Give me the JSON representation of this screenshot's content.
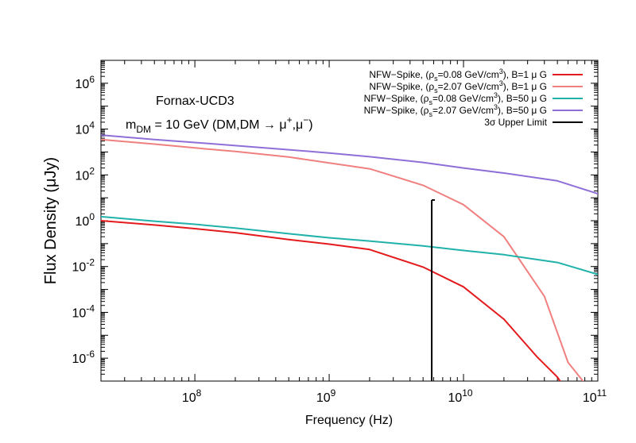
{
  "chart_data": {
    "type": "line",
    "xscale": "log",
    "yscale": "log",
    "xlabel": "Frequency (Hz)",
    "ylabel": "Flux Density (μJy)",
    "xlim": [
      20000000,
      100000000000
    ],
    "ylim": [
      1e-07,
      10000000.0
    ],
    "x_ticks": [
      {
        "value": 100000000,
        "mantissa": "10",
        "exp": "8"
      },
      {
        "value": 1000000000,
        "mantissa": "10",
        "exp": "9"
      },
      {
        "value": 10000000000,
        "mantissa": "10",
        "exp": "10"
      },
      {
        "value": 100000000000,
        "mantissa": "10",
        "exp": "11"
      }
    ],
    "y_ticks": [
      {
        "value": 1000000.0,
        "mantissa": "10",
        "exp": "6"
      },
      {
        "value": 10000.0,
        "mantissa": "10",
        "exp": "4"
      },
      {
        "value": 100.0,
        "mantissa": "10",
        "exp": "2"
      },
      {
        "value": 1,
        "mantissa": "10",
        "exp": "0"
      },
      {
        "value": 0.01,
        "mantissa": "10",
        "exp": "-2"
      },
      {
        "value": 0.0001,
        "mantissa": "10",
        "exp": "-4"
      },
      {
        "value": 1e-06,
        "mantissa": "10",
        "exp": "-6"
      }
    ],
    "grid": false,
    "legend_position": "top-right",
    "annotations": {
      "object": "Fornax-UCD3",
      "mass_prefix": "m",
      "mass_sub": "DM",
      "mass_value": " = 10 GeV (DM,DM → μ",
      "mass_sup1": "+",
      "mass_mid": ",μ",
      "mass_sup2": "−",
      "mass_end": ")"
    },
    "series": [
      {
        "legend_a": "NFW−Spike, (ρ",
        "legend_sub": "s",
        "legend_b": "=0.08 GeV/cm",
        "legend_sup": "3",
        "legend_c": "), B=1 μ G",
        "color": "#e41a1c",
        "x": [
          20000000,
          50000000,
          100000000,
          200000000,
          500000000,
          1000000000,
          2000000000,
          5000000000,
          10000000000,
          20000000000,
          35000000000,
          50000000000,
          60000000000
        ],
        "y": [
          1.0,
          0.65,
          0.45,
          0.3,
          0.15,
          0.095,
          0.055,
          0.0095,
          0.0013,
          5e-05,
          1.2e-06,
          1.5e-07,
          3e-08
        ]
      },
      {
        "legend_a": "NFW−Spike, (ρ",
        "legend_sub": "s",
        "legend_b": "=2.07 GeV/cm",
        "legend_sup": "3",
        "legend_c": "), B=1 μ G",
        "color": "#f08080",
        "x": [
          20000000,
          50000000,
          100000000,
          200000000,
          500000000,
          1000000000,
          2000000000,
          5000000000,
          10000000000,
          20000000000,
          40000000000,
          60000000000,
          80000000000
        ],
        "y": [
          3500,
          2200,
          1500,
          1050,
          600,
          330,
          185,
          35,
          5,
          0.2,
          0.0005,
          6.5e-07,
          8e-08
        ]
      },
      {
        "legend_a": "NFW−Spike, (ρ",
        "legend_sub": "s",
        "legend_b": "=0.08 GeV/cm",
        "legend_sup": "3",
        "legend_c": "), B=50 μ G",
        "color": "#20b2aa",
        "x": [
          20000000,
          50000000,
          100000000,
          200000000,
          500000000,
          1000000000,
          2000000000,
          5000000000,
          10000000000,
          20000000000,
          50000000000,
          100000000000
        ],
        "y": [
          1.5,
          0.95,
          0.7,
          0.48,
          0.27,
          0.18,
          0.13,
          0.08,
          0.05,
          0.033,
          0.015,
          0.0045
        ]
      },
      {
        "legend_a": "NFW−Spike, (ρ",
        "legend_sub": "s",
        "legend_b": "=2.07 GeV/cm",
        "legend_sup": "3",
        "legend_c": "), B=50 μ G",
        "color": "#8e6fd8",
        "x": [
          20000000,
          50000000,
          100000000,
          200000000,
          500000000,
          1000000000,
          2000000000,
          5000000000,
          10000000000,
          20000000000,
          50000000000,
          100000000000
        ],
        "y": [
          5500,
          3500,
          2600,
          1900,
          1250,
          900,
          620,
          350,
          200,
          120,
          55,
          15
        ]
      }
    ],
    "upper_limit": {
      "legend": "3σ Upper Limit",
      "color": "#000000",
      "x": 5800000000,
      "y": 8
    }
  }
}
